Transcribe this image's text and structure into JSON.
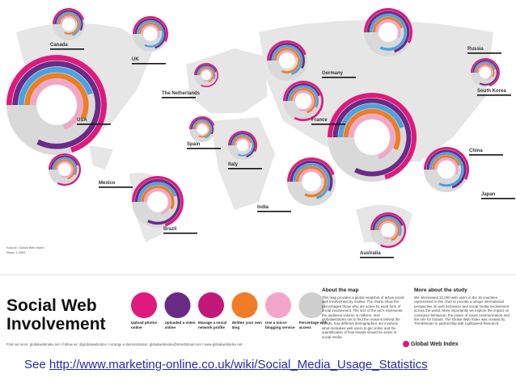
{
  "map": {
    "countries": [
      "Canada",
      "UK",
      "USA",
      "The Netherlands",
      "Germany",
      "Russia",
      "South Korea",
      "France",
      "Spain",
      "Italy",
      "China",
      "Mexico",
      "India",
      "Japan",
      "Brazil",
      "Australia"
    ],
    "source": [
      "Source: Global Web Index",
      "Wave 1 2009"
    ]
  },
  "panel": {
    "title": [
      "Social Web",
      "Involvement"
    ],
    "legend": [
      "Upload photos online",
      "Uploaded a video online",
      "Manage a social network profile",
      "Written your own blog",
      "Use a micro-blogging service",
      "Percentage with access"
    ],
    "about_title": "About the map",
    "about_text": "This map provides a global snapshot of active social web involvement by market. The charts show the percentages those who are active by each form of social involvement. The size of the arc's represents the audience volume in millions. Visit globalwebindex.net to find the reasons behind the trends, how different demographics are involved, what motivates web users to get online and the quantification of how brands should be active in social media.",
    "study_title": "More about the study",
    "study_text": "We interviewed 32,000 web users in the 16 countries represented in this chart to provide a unique international perspective on web behaviour and social media involvement across the world. More importantly we explore the impact on consumer behaviour, the power of social communication and the role for brands. The Global Web Index was created by Trendstream in partnership with Lightspeed Research.",
    "logo": "Global Web Index",
    "footer": "Find out more: globalwebindex.net  /  Follow us: @globalwebindex  /  Arrange a demonstration: globalwebindex@trendstream.net  /  www.globalwebindex.net"
  },
  "link": {
    "prefix": "See",
    "url": "http://www.marketing-online.co.uk/wiki/Social_Media_Usage_Statistics"
  }
}
